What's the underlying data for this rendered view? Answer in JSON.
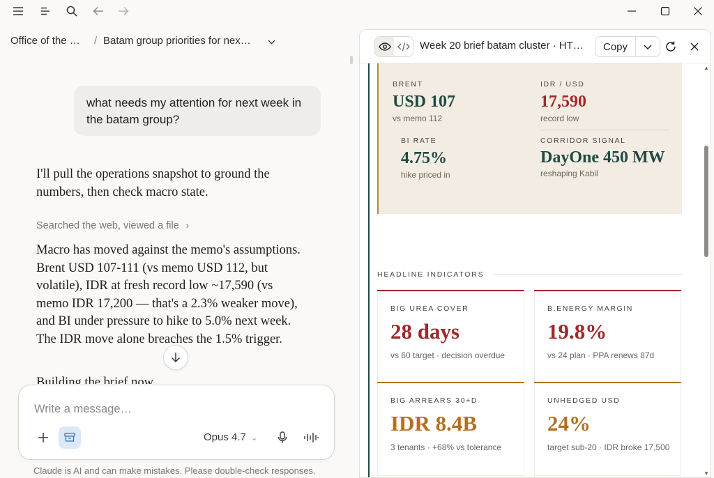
{
  "titlebar": {
    "menu_icon": "hamburger-icon",
    "sidebar_icon": "sidebar-lines-icon",
    "search_icon": "search-icon",
    "back_icon": "arrow-left-icon",
    "forward_icon": "arrow-right-icon"
  },
  "breadcrumb": {
    "project": "Office of the …",
    "separator": "/",
    "chat": "Batam group priorities for nex…"
  },
  "chat": {
    "user_message": "what needs my attention for next week in the batam group?",
    "intro": "I'll pull the operations snapshot to ground the numbers, then check macro state.",
    "tool_summary": "Searched the web, viewed a file",
    "analysis": "Macro has moved against the memo's assumptions. Brent USD 107-111 (vs memo USD 112, but volatile), IDR at fresh record low ~17,590 (vs memo IDR 17,200 — that's a 2.3% weaker move), and BI under pressure to hike to 5.0% next week. The IDR move alone breaches the 1.5% trigger.",
    "trailing": "Building the brief now"
  },
  "composer": {
    "placeholder": "Write a message…",
    "model": "Opus 4.7",
    "disclaimer": "Claude is AI and can make mistakes. Please double-check responses."
  },
  "artifact": {
    "title": "Week 20 brief batam cluster · HT…",
    "copy_label": "Copy",
    "memo": {
      "brent": {
        "kicker": "BRENT",
        "value": "USD 107",
        "sub": "vs memo 112"
      },
      "idr": {
        "kicker": "IDR / USD",
        "value": "17,590",
        "sub": "record low"
      },
      "bi": {
        "kicker": "BI RATE",
        "value": "4.75%",
        "sub": "hike priced in"
      },
      "corridor": {
        "kicker": "CORRIDOR SIGNAL",
        "value": "DayOne 450 MW",
        "sub": "reshaping Kabil"
      }
    },
    "section_label": "HEADLINE INDICATORS",
    "cards": [
      {
        "kicker": "BIG UREA COVER",
        "value": "28 days",
        "sub": "vs 60 target · decision overdue"
      },
      {
        "kicker": "B.ENERGY MARGIN",
        "value": "19.8%",
        "sub": "vs 24 plan · PPA renews 87d"
      },
      {
        "kicker": "BIG ARREARS 30+D",
        "value": "IDR 8.4B",
        "sub": "3 tenants · +68% vs tolerance"
      },
      {
        "kicker": "UNHEDGED USD",
        "value": "24%",
        "sub": "target sub-20 · IDR broke 17,500"
      }
    ],
    "colors": {
      "red": "#a0282b",
      "amber": "#b5701e",
      "teal": "#1f4a44"
    }
  }
}
